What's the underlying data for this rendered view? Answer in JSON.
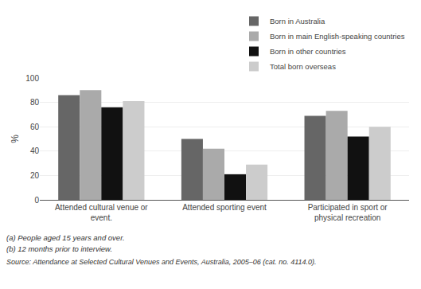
{
  "chart_data": {
    "type": "bar",
    "categories": [
      "Attended cultural venue or event.",
      "Attended sporting event",
      "Participated in sport or physical recreation"
    ],
    "series": [
      {
        "name": "Born in Australia",
        "color": "#666666",
        "values": [
          86,
          50,
          69
        ]
      },
      {
        "name": "Born in main English-speaking countries",
        "color": "#aaaaaa",
        "values": [
          90,
          42,
          73
        ]
      },
      {
        "name": "Born in other countries",
        "color": "#111111",
        "values": [
          76,
          21,
          52
        ]
      },
      {
        "name": "Total born overseas",
        "color": "#cccccc",
        "values": [
          81,
          29,
          60
        ]
      }
    ],
    "ylabel": "%",
    "ylim": [
      0,
      100
    ],
    "yticks": [
      0,
      20,
      40,
      60,
      80,
      100
    ],
    "grid": true,
    "legend": "upper right",
    "annotations": [
      "(a) People aged 15 years and over.",
      "(b) 12 months prior to interview.",
      "Source: Attendance at Selected Cultural Venues and Events, Australia, 2005–06 (cat. no. 4114.0)."
    ]
  }
}
